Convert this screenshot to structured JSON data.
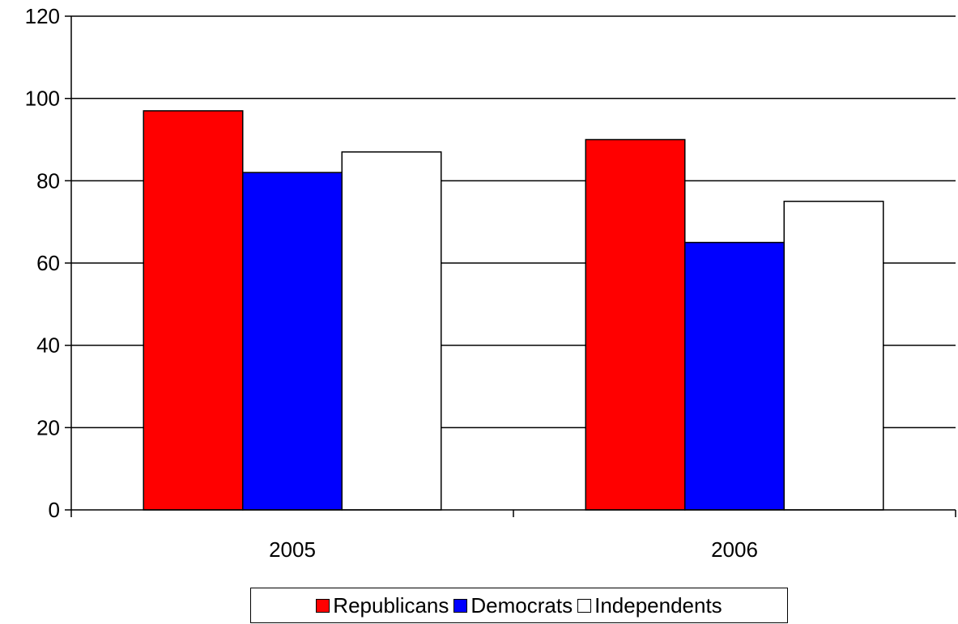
{
  "chart_data": {
    "type": "bar",
    "categories": [
      "2005",
      "2006"
    ],
    "series": [
      {
        "name": "Republicans",
        "values": [
          97,
          90
        ],
        "color": "#ff0000"
      },
      {
        "name": "Democrats",
        "values": [
          82,
          65
        ],
        "color": "#0000ff"
      },
      {
        "name": "Independents",
        "values": [
          87,
          75
        ],
        "color": "#ffffff"
      }
    ],
    "ylim": [
      0,
      120
    ],
    "yticks": [
      0,
      20,
      40,
      60,
      80,
      100,
      120
    ],
    "ytick_labels": [
      "0",
      "20",
      "40",
      "60",
      "80",
      "100",
      "120"
    ],
    "grid": true,
    "legend_position": "bottom",
    "title": "",
    "xlabel": "",
    "ylabel": ""
  }
}
